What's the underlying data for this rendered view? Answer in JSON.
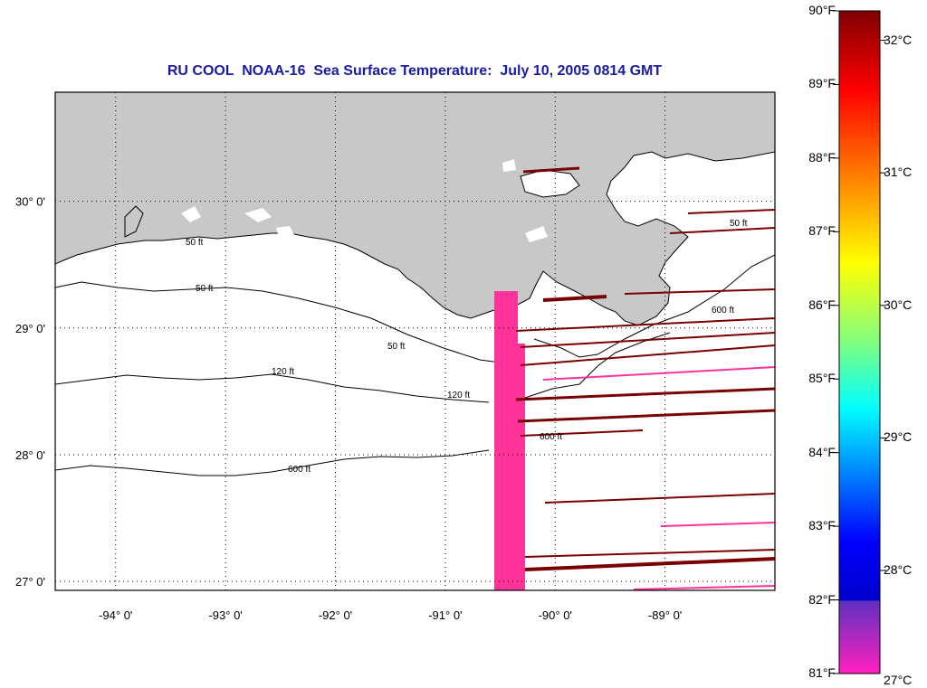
{
  "title": "RU COOL  NOAA-16  Sea Surface Temperature:  July 10, 2005 0814 GMT",
  "map": {
    "lon_range": [
      -94.55,
      -88.0
    ],
    "lat_range": [
      26.93,
      30.86
    ],
    "lon_ticks": [
      {
        "value": -94,
        "label": "-94° 0'"
      },
      {
        "value": -93,
        "label": "-93° 0'"
      },
      {
        "value": -92,
        "label": "-92° 0'"
      },
      {
        "value": -91,
        "label": "-91° 0'"
      },
      {
        "value": -90,
        "label": "-90° 0'"
      },
      {
        "value": -89,
        "label": "-89° 0'"
      }
    ],
    "lat_ticks": [
      {
        "value": 30,
        "label": "30° 0'"
      },
      {
        "value": 29,
        "label": "29° 0'"
      },
      {
        "value": 28,
        "label": "28° 0'"
      },
      {
        "value": 27,
        "label": "27° 0'"
      }
    ],
    "contour_labels": [
      "50 ft",
      "120 ft",
      "600 ft"
    ],
    "colors": {
      "land": "#c8c8c8",
      "ocean": "#ffffff",
      "contour": "#000000",
      "grid": "#000000",
      "sst_warm": "#7a0000",
      "sst_cool": "#ff3399"
    }
  },
  "colorbar": {
    "fahrenheit_labels": [
      "90°F",
      "89°F",
      "88°F",
      "87°F",
      "86°F",
      "85°F",
      "84°F",
      "83°F",
      "82°F",
      "81°F"
    ],
    "fahrenheit_values": [
      90,
      89,
      88,
      87,
      86,
      85,
      84,
      83,
      82,
      81
    ],
    "celsius_labels": [
      "32°C",
      "31°C",
      "30°C",
      "29°C",
      "28°C",
      "27°C"
    ],
    "celsius_values": [
      32,
      31,
      30,
      29,
      28,
      27
    ],
    "range_f": [
      81,
      90
    ]
  }
}
